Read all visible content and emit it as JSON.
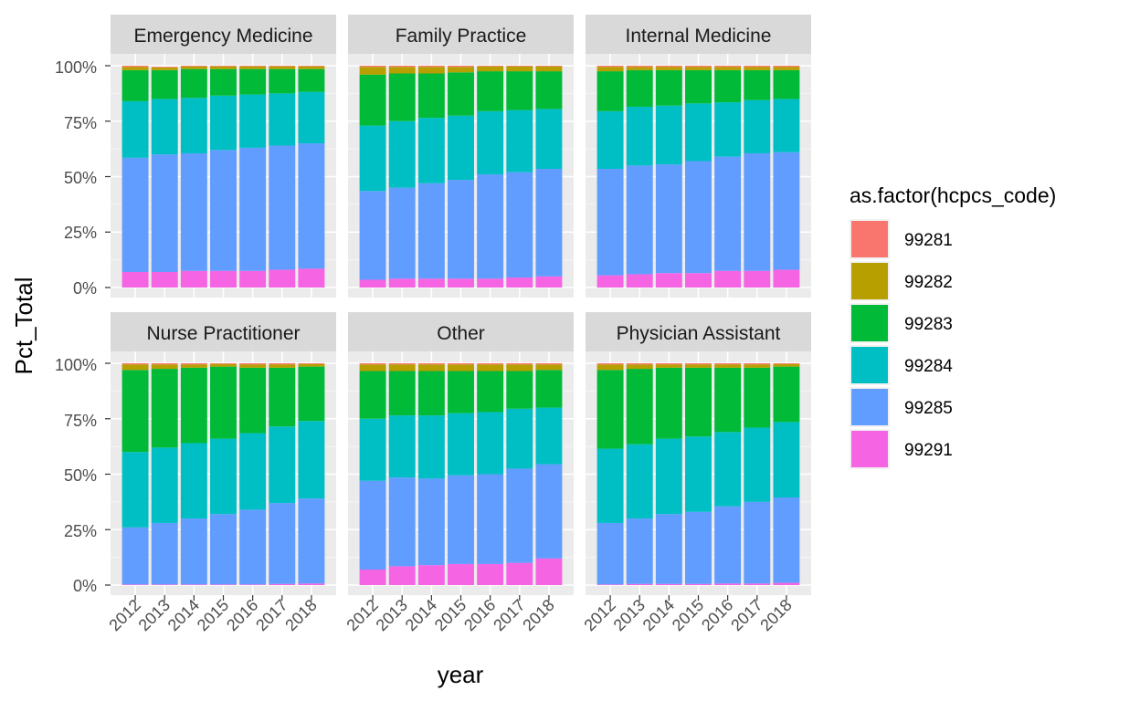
{
  "chart_data": {
    "type": "bar",
    "stacked": true,
    "facet_layout": "2 rows x 3 columns",
    "xlabel": "year",
    "ylabel": "Pct_Total",
    "ylim": [
      0,
      1
    ],
    "y_ticks": [
      "0%",
      "25%",
      "50%",
      "75%",
      "100%"
    ],
    "y_tick_values": [
      0,
      0.25,
      0.5,
      0.75,
      1.0
    ],
    "categories": [
      "2012",
      "2013",
      "2014",
      "2015",
      "2016",
      "2017",
      "2018"
    ],
    "grid": true,
    "legend": {
      "title": "as.factor(hcpcs_code)",
      "position": "right",
      "entries": [
        {
          "code": "99281",
          "color": "#F8766D"
        },
        {
          "code": "99282",
          "color": "#B79F00"
        },
        {
          "code": "99283",
          "color": "#00BA38"
        },
        {
          "code": "99284",
          "color": "#00BFC4"
        },
        {
          "code": "99285",
          "color": "#619CFF"
        },
        {
          "code": "99291",
          "color": "#F564E3"
        }
      ]
    },
    "stack_order_bottom_to_top": [
      "99291",
      "99285",
      "99284",
      "99283",
      "99282",
      "99281"
    ],
    "facets": [
      {
        "title": "Emergency Medicine",
        "series": [
          {
            "name": "99291",
            "values": [
              0.07,
              0.07,
              0.075,
              0.075,
              0.075,
              0.08,
              0.085
            ]
          },
          {
            "name": "99285",
            "values": [
              0.515,
              0.53,
              0.53,
              0.545,
              0.555,
              0.56,
              0.565
            ]
          },
          {
            "name": "99284",
            "values": [
              0.255,
              0.25,
              0.25,
              0.245,
              0.24,
              0.235,
              0.232
            ]
          },
          {
            "name": "99283",
            "values": [
              0.14,
              0.13,
              0.13,
              0.12,
              0.115,
              0.11,
              0.103
            ]
          },
          {
            "name": "99282",
            "values": [
              0.015,
              0.012,
              0.012,
              0.012,
              0.012,
              0.012,
              0.012
            ]
          },
          {
            "name": "99281",
            "values": [
              0.005,
              0.003,
              0.003,
              0.003,
              0.003,
              0.003,
              0.003
            ]
          }
        ]
      },
      {
        "title": "Family Practice",
        "series": [
          {
            "name": "99291",
            "values": [
              0.035,
              0.04,
              0.04,
              0.04,
              0.04,
              0.045,
              0.05
            ]
          },
          {
            "name": "99285",
            "values": [
              0.4,
              0.41,
              0.43,
              0.445,
              0.47,
              0.475,
              0.485
            ]
          },
          {
            "name": "99284",
            "values": [
              0.295,
              0.3,
              0.295,
              0.29,
              0.285,
              0.28,
              0.27
            ]
          },
          {
            "name": "99283",
            "values": [
              0.23,
              0.215,
              0.2,
              0.195,
              0.18,
              0.175,
              0.17
            ]
          },
          {
            "name": "99282",
            "values": [
              0.035,
              0.03,
              0.03,
              0.025,
              0.022,
              0.022,
              0.022
            ]
          },
          {
            "name": "99281",
            "values": [
              0.005,
              0.005,
              0.005,
              0.005,
              0.003,
              0.003,
              0.003
            ]
          }
        ]
      },
      {
        "title": "Internal Medicine",
        "series": [
          {
            "name": "99291",
            "values": [
              0.055,
              0.06,
              0.065,
              0.065,
              0.075,
              0.075,
              0.08
            ]
          },
          {
            "name": "99285",
            "values": [
              0.48,
              0.49,
              0.49,
              0.505,
              0.515,
              0.53,
              0.53
            ]
          },
          {
            "name": "99284",
            "values": [
              0.26,
              0.265,
              0.265,
              0.26,
              0.245,
              0.24,
              0.24
            ]
          },
          {
            "name": "99283",
            "values": [
              0.18,
              0.165,
              0.16,
              0.15,
              0.145,
              0.135,
              0.13
            ]
          },
          {
            "name": "99282",
            "values": [
              0.02,
              0.015,
              0.015,
              0.015,
              0.015,
              0.015,
              0.015
            ]
          },
          {
            "name": "99281",
            "values": [
              0.005,
              0.005,
              0.005,
              0.005,
              0.005,
              0.005,
              0.005
            ]
          }
        ]
      },
      {
        "title": "Nurse Practitioner",
        "series": [
          {
            "name": "99291",
            "values": [
              0.003,
              0.003,
              0.003,
              0.003,
              0.003,
              0.005,
              0.007
            ]
          },
          {
            "name": "99285",
            "values": [
              0.257,
              0.277,
              0.297,
              0.317,
              0.337,
              0.365,
              0.383
            ]
          },
          {
            "name": "99284",
            "values": [
              0.34,
              0.34,
              0.34,
              0.34,
              0.345,
              0.345,
              0.35
            ]
          },
          {
            "name": "99283",
            "values": [
              0.37,
              0.355,
              0.34,
              0.325,
              0.295,
              0.265,
              0.245
            ]
          },
          {
            "name": "99282",
            "values": [
              0.025,
              0.02,
              0.015,
              0.012,
              0.015,
              0.015,
              0.012
            ]
          },
          {
            "name": "99281",
            "values": [
              0.005,
              0.005,
              0.005,
              0.003,
              0.005,
              0.005,
              0.003
            ]
          }
        ]
      },
      {
        "title": "Other",
        "series": [
          {
            "name": "99291",
            "values": [
              0.07,
              0.085,
              0.09,
              0.095,
              0.095,
              0.1,
              0.12
            ]
          },
          {
            "name": "99285",
            "values": [
              0.4,
              0.4,
              0.39,
              0.4,
              0.405,
              0.425,
              0.425
            ]
          },
          {
            "name": "99284",
            "values": [
              0.28,
              0.28,
              0.285,
              0.28,
              0.28,
              0.27,
              0.255
            ]
          },
          {
            "name": "99283",
            "values": [
              0.215,
              0.2,
              0.2,
              0.19,
              0.185,
              0.17,
              0.17
            ]
          },
          {
            "name": "99282",
            "values": [
              0.03,
              0.03,
              0.03,
              0.03,
              0.03,
              0.03,
              0.025
            ]
          },
          {
            "name": "99281",
            "values": [
              0.005,
              0.005,
              0.005,
              0.005,
              0.005,
              0.005,
              0.005
            ]
          }
        ]
      },
      {
        "title": "Physician Assistant",
        "series": [
          {
            "name": "99291",
            "values": [
              0.003,
              0.005,
              0.005,
              0.005,
              0.007,
              0.007,
              0.01
            ]
          },
          {
            "name": "99285",
            "values": [
              0.277,
              0.295,
              0.315,
              0.325,
              0.348,
              0.368,
              0.385
            ]
          },
          {
            "name": "99284",
            "values": [
              0.335,
              0.335,
              0.34,
              0.34,
              0.335,
              0.335,
              0.34
            ]
          },
          {
            "name": "99283",
            "values": [
              0.355,
              0.34,
              0.32,
              0.31,
              0.29,
              0.27,
              0.25
            ]
          },
          {
            "name": "99282",
            "values": [
              0.025,
              0.02,
              0.015,
              0.015,
              0.015,
              0.015,
              0.012
            ]
          },
          {
            "name": "99281",
            "values": [
              0.005,
              0.005,
              0.005,
              0.005,
              0.005,
              0.005,
              0.003
            ]
          }
        ]
      }
    ]
  }
}
